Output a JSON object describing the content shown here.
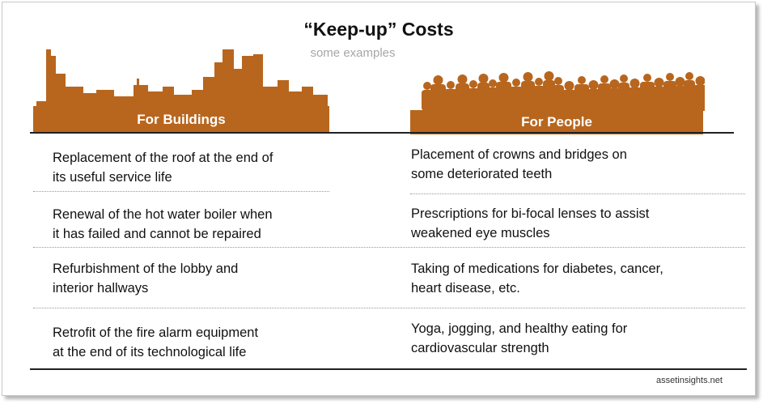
{
  "title": "“Keep-up” Costs",
  "subtitle": "some examples",
  "colors": {
    "accent": "#b8661e",
    "subtitle": "#a6a6a6"
  },
  "columns": [
    {
      "header": "For Buildings",
      "icon": "city-skyline-silhouette-icon"
    },
    {
      "header": "For People",
      "icon": "crowd-silhouette-icon"
    }
  ],
  "rows": [
    {
      "buildings": [
        "Replacement of the roof at the end of",
        "its useful service life"
      ],
      "people": [
        "Placement of crowns and bridges on",
        "some deteriorated  teeth"
      ]
    },
    {
      "buildings": [
        "Renewal of the hot water boiler when",
        "it has failed and cannot be repaired"
      ],
      "people": [
        "Prescriptions for bi-focal lenses to assist",
        "weakened eye muscles"
      ]
    },
    {
      "buildings": [
        "Refurbishment  of the lobby and",
        "interior hallways"
      ],
      "people": [
        "Taking of medications for diabetes,  cancer,",
        "heart disease,  etc."
      ]
    },
    {
      "buildings": [
        "Retrofit of the fire alarm equipment",
        "at the end of its technological  life"
      ],
      "people": [
        "Yoga, jogging, and healthy eating for",
        "cardiovascular  strength"
      ]
    }
  ],
  "credit": "assetinsights.net"
}
